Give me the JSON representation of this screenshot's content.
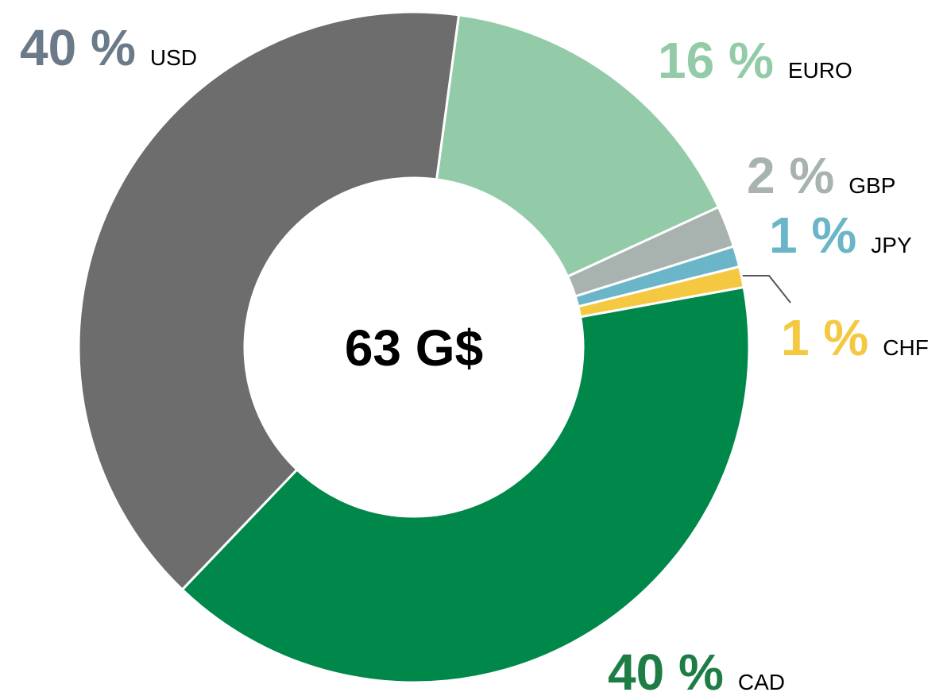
{
  "chart_data": {
    "type": "donut",
    "center_label": "63 G$",
    "categories": [
      "EURO",
      "GBP",
      "JPY",
      "CHF",
      "CAD",
      "USD"
    ],
    "values": [
      16,
      2,
      1,
      1,
      40,
      40
    ],
    "value_labels": [
      "16 %",
      "2 %",
      "1 %",
      "1 %",
      "40 %",
      "40 %"
    ],
    "colors": [
      "#93cba9",
      "#a8b2ae",
      "#6bb5c8",
      "#f5c842",
      "#00874a",
      "#6d6d6d"
    ],
    "label_colors": [
      "#93cba9",
      "#a8b2ae",
      "#6bb5c8",
      "#f5c842",
      "#1e7d45",
      "#6b7a88"
    ]
  }
}
